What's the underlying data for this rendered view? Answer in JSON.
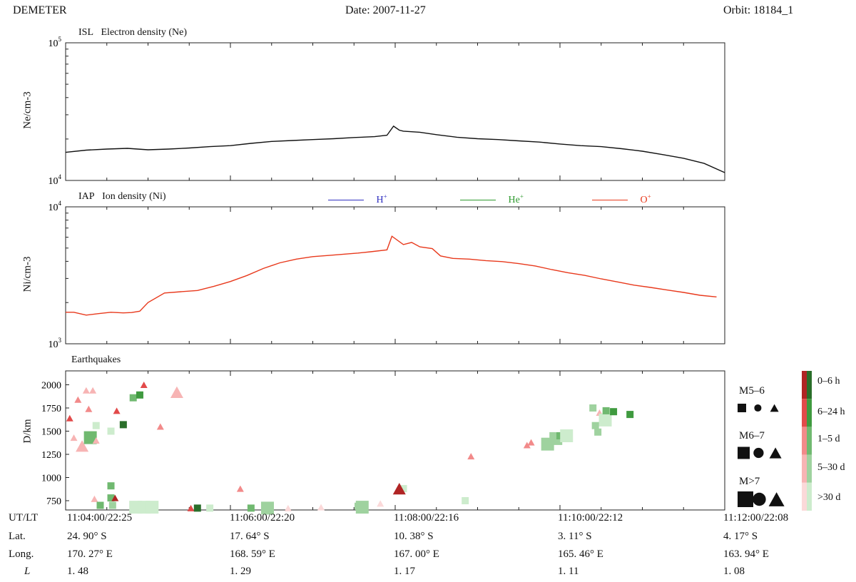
{
  "header": {
    "instrument": "DEMETER",
    "date_label": "Date:",
    "date": "2007-11-27",
    "orbit_label": "Orbit:",
    "orbit": "18184_1"
  },
  "colors": {
    "H": "#3030c0",
    "He": "#2e9a2e",
    "O": "#e8391c",
    "ne_line": "#111111"
  },
  "chart_data": [
    {
      "type": "line",
      "panel": "electron",
      "title_left": "ISL",
      "title": "Electron density (Ne)",
      "ylabel": "Ne/cm-3",
      "yscale": "log",
      "ylim": [
        10000,
        100000
      ],
      "yticks": [
        {
          "value": 10000,
          "label": "10",
          "exp": "4"
        },
        {
          "value": 100000,
          "label": "10",
          "exp": "5"
        }
      ],
      "xlim": [
        0,
        8
      ],
      "series": [
        {
          "x": [
            0,
            0.25,
            0.5,
            0.75,
            1,
            1.25,
            1.5,
            1.75,
            2,
            2.25,
            2.5,
            2.75,
            3,
            3.25,
            3.5,
            3.75,
            3.9,
            3.98,
            4.05,
            4.1,
            4.3,
            4.5,
            4.75,
            5,
            5.25,
            5.5,
            5.75,
            6,
            6.25,
            6.5,
            6.75,
            7,
            7.25,
            7.5,
            7.75,
            8
          ],
          "y": [
            16000,
            16600,
            16900,
            17100,
            16700,
            16900,
            17200,
            17600,
            17900,
            18600,
            19200,
            19500,
            19800,
            20100,
            20500,
            20800,
            21300,
            24800,
            23200,
            22800,
            22400,
            21500,
            20600,
            20100,
            19800,
            19400,
            19000,
            18400,
            17900,
            17600,
            17000,
            16300,
            15400,
            14500,
            13300,
            11400
          ]
        }
      ]
    },
    {
      "type": "line",
      "panel": "ion",
      "title_left": "IAP",
      "title": "Ion density (Ni)",
      "ylabel": "Ni/cm-3",
      "yscale": "log",
      "ylim": [
        1000,
        10000
      ],
      "yticks": [
        {
          "value": 1000,
          "label": "10",
          "exp": "3"
        },
        {
          "value": 10000,
          "label": "10",
          "exp": "4"
        }
      ],
      "xlim": [
        0,
        8
      ],
      "legend": [
        {
          "name": "H",
          "sup": "+",
          "color": "#3030c0"
        },
        {
          "name": "He",
          "sup": "+",
          "color": "#2e9a2e"
        },
        {
          "name": "O",
          "sup": "+",
          "color": "#e8391c"
        }
      ],
      "series": [
        {
          "name": "O+",
          "color": "#e8391c",
          "x": [
            0,
            0.1,
            0.25,
            0.4,
            0.55,
            0.7,
            0.8,
            0.9,
            1.0,
            1.2,
            1.4,
            1.6,
            1.8,
            2.0,
            2.2,
            2.4,
            2.6,
            2.8,
            3.0,
            3.2,
            3.4,
            3.55,
            3.7,
            3.9,
            3.96,
            4.1,
            4.2,
            4.3,
            4.45,
            4.55,
            4.7,
            4.9,
            5.1,
            5.3,
            5.5,
            5.7,
            5.9,
            6.1,
            6.3,
            6.5,
            6.7,
            6.9,
            7.1,
            7.3,
            7.5,
            7.7,
            7.9
          ],
          "y": [
            1700,
            1700,
            1620,
            1660,
            1700,
            1680,
            1690,
            1730,
            2000,
            2350,
            2400,
            2450,
            2630,
            2850,
            3150,
            3550,
            3900,
            4150,
            4330,
            4420,
            4520,
            4600,
            4700,
            4850,
            6100,
            5300,
            5500,
            5100,
            4950,
            4380,
            4200,
            4150,
            4050,
            3980,
            3850,
            3700,
            3480,
            3300,
            3160,
            2980,
            2830,
            2680,
            2580,
            2470,
            2370,
            2260,
            2200
          ]
        }
      ]
    },
    {
      "type": "scatter",
      "panel": "earthquakes",
      "title": "Earthquakes",
      "ylabel": "D/km",
      "ylim": [
        650,
        2150
      ],
      "yticks": [
        750,
        1000,
        1250,
        1500,
        1750,
        2000
      ],
      "xlim": [
        0,
        8
      ],
      "time_color_legend": [
        {
          "label": "0–6 h",
          "color": "#b02424"
        },
        {
          "label": "6–24 h",
          "color": "#e24a4a"
        },
        {
          "label": "1–5 d",
          "color": "#f28a8a"
        },
        {
          "label": "5–30 d",
          "color": "#f7b4b4"
        },
        {
          "label": ">30 d",
          "color": "#fbd9d9"
        }
      ],
      "time_color_legend_green": [
        "#2a6e2a",
        "#3f9a3f",
        "#70b970",
        "#9fd29f",
        "#cdeccd"
      ],
      "magnitude_legend": [
        {
          "label": "M5–6",
          "size": "small"
        },
        {
          "label": "M6–7",
          "size": "medium"
        },
        {
          "label": "M>7",
          "size": "large"
        }
      ],
      "points": [
        {
          "x": 0.05,
          "y": 1640,
          "shape": "tri",
          "size": "s",
          "c": "#e24a4a"
        },
        {
          "x": 0.1,
          "y": 1430,
          "shape": "tri",
          "size": "s",
          "c": "#f7b4b4"
        },
        {
          "x": 0.15,
          "y": 1840,
          "shape": "tri",
          "size": "s",
          "c": "#f28a8a"
        },
        {
          "x": 0.2,
          "y": 1340,
          "shape": "tri",
          "size": "m",
          "c": "#f7b4b4"
        },
        {
          "x": 0.25,
          "y": 1940,
          "shape": "tri",
          "size": "s",
          "c": "#f7b4b4"
        },
        {
          "x": 0.28,
          "y": 1740,
          "shape": "tri",
          "size": "s",
          "c": "#f28a8a"
        },
        {
          "x": 0.33,
          "y": 1940,
          "shape": "tri",
          "size": "s",
          "c": "#f7b4b4"
        },
        {
          "x": 0.3,
          "y": 1430,
          "shape": "sq",
          "size": "m",
          "c": "#70b970"
        },
        {
          "x": 0.37,
          "y": 1560,
          "shape": "sq",
          "size": "s",
          "c": "#cdeccd"
        },
        {
          "x": 0.37,
          "y": 1400,
          "shape": "tri",
          "size": "s",
          "c": "#f7b4b4"
        },
        {
          "x": 0.35,
          "y": 770,
          "shape": "tri",
          "size": "s",
          "c": "#f7b4b4"
        },
        {
          "x": 0.42,
          "y": 700,
          "shape": "sq",
          "size": "s",
          "c": "#70b970"
        },
        {
          "x": 0.55,
          "y": 1500,
          "shape": "sq",
          "size": "s",
          "c": "#cdeccd"
        },
        {
          "x": 0.55,
          "y": 910,
          "shape": "sq",
          "size": "s",
          "c": "#70b970"
        },
        {
          "x": 0.55,
          "y": 780,
          "shape": "sq",
          "size": "s",
          "c": "#70b970"
        },
        {
          "x": 0.57,
          "y": 700,
          "shape": "sq",
          "size": "s",
          "c": "#9fd29f"
        },
        {
          "x": 0.6,
          "y": 780,
          "shape": "tri",
          "size": "s",
          "c": "#b02424"
        },
        {
          "x": 0.62,
          "y": 1720,
          "shape": "tri",
          "size": "s",
          "c": "#e24a4a"
        },
        {
          "x": 0.7,
          "y": 1570,
          "shape": "sq",
          "size": "s",
          "c": "#2a6e2a"
        },
        {
          "x": 0.82,
          "y": 1860,
          "shape": "sq",
          "size": "s",
          "c": "#70b970"
        },
        {
          "x": 0.9,
          "y": 1890,
          "shape": "sq",
          "size": "s",
          "c": "#3f9a3f"
        },
        {
          "x": 0.95,
          "y": 2000,
          "shape": "tri",
          "size": "s",
          "c": "#e24a4a"
        },
        {
          "x": 0.85,
          "y": 680,
          "shape": "sq",
          "size": "m",
          "c": "#cdeccd"
        },
        {
          "x": 0.95,
          "y": 680,
          "shape": "sq",
          "size": "m",
          "c": "#cdeccd"
        },
        {
          "x": 1.05,
          "y": 680,
          "shape": "sq",
          "size": "m",
          "c": "#cdeccd"
        },
        {
          "x": 1.15,
          "y": 1550,
          "shape": "tri",
          "size": "s",
          "c": "#f28a8a"
        },
        {
          "x": 1.35,
          "y": 1920,
          "shape": "tri",
          "size": "m",
          "c": "#f7b4b4"
        },
        {
          "x": 1.52,
          "y": 670,
          "shape": "tri",
          "size": "s",
          "c": "#e24a4a"
        },
        {
          "x": 1.6,
          "y": 670,
          "shape": "sq",
          "size": "s",
          "c": "#2a6e2a"
        },
        {
          "x": 1.75,
          "y": 670,
          "shape": "sq",
          "size": "s",
          "c": "#cdeccd"
        },
        {
          "x": 2.12,
          "y": 880,
          "shape": "tri",
          "size": "s",
          "c": "#f28a8a"
        },
        {
          "x": 2.25,
          "y": 670,
          "shape": "sq",
          "size": "s",
          "c": "#70b970"
        },
        {
          "x": 2.45,
          "y": 670,
          "shape": "sq",
          "size": "m",
          "c": "#9fd29f"
        },
        {
          "x": 2.7,
          "y": 670,
          "shape": "tri",
          "size": "s",
          "c": "#fbd9d9"
        },
        {
          "x": 3.1,
          "y": 680,
          "shape": "tri",
          "size": "s",
          "c": "#fbd9d9"
        },
        {
          "x": 3.55,
          "y": 690,
          "shape": "sq",
          "size": "s",
          "c": "#9fd29f"
        },
        {
          "x": 3.6,
          "y": 680,
          "shape": "sq",
          "size": "m",
          "c": "#9fd29f"
        },
        {
          "x": 3.82,
          "y": 720,
          "shape": "tri",
          "size": "s",
          "c": "#fbd9d9"
        },
        {
          "x": 4.1,
          "y": 880,
          "shape": "sq",
          "size": "s",
          "c": "#cdeccd"
        },
        {
          "x": 4.05,
          "y": 880,
          "shape": "tri",
          "size": "m",
          "c": "#b02424"
        },
        {
          "x": 4.85,
          "y": 750,
          "shape": "sq",
          "size": "s",
          "c": "#cdeccd"
        },
        {
          "x": 4.92,
          "y": 1230,
          "shape": "tri",
          "size": "s",
          "c": "#f28a8a"
        },
        {
          "x": 5.6,
          "y": 1350,
          "shape": "tri",
          "size": "s",
          "c": "#f28a8a"
        },
        {
          "x": 5.65,
          "y": 1380,
          "shape": "tri",
          "size": "s",
          "c": "#f28a8a"
        },
        {
          "x": 5.85,
          "y": 1360,
          "shape": "sq",
          "size": "m",
          "c": "#9fd29f"
        },
        {
          "x": 5.95,
          "y": 1420,
          "shape": "sq",
          "size": "m",
          "c": "#9fd29f"
        },
        {
          "x": 6.0,
          "y": 1450,
          "shape": "sq",
          "size": "s",
          "c": "#70b970"
        },
        {
          "x": 6.08,
          "y": 1450,
          "shape": "sq",
          "size": "m",
          "c": "#cdeccd"
        },
        {
          "x": 6.4,
          "y": 1750,
          "shape": "sq",
          "size": "s",
          "c": "#9fd29f"
        },
        {
          "x": 6.48,
          "y": 1700,
          "shape": "tri",
          "size": "s",
          "c": "#f7b4b4"
        },
        {
          "x": 6.55,
          "y": 1620,
          "shape": "sq",
          "size": "m",
          "c": "#cdeccd"
        },
        {
          "x": 6.43,
          "y": 1560,
          "shape": "sq",
          "size": "s",
          "c": "#9fd29f"
        },
        {
          "x": 6.46,
          "y": 1490,
          "shape": "sq",
          "size": "s",
          "c": "#9fd29f"
        },
        {
          "x": 6.56,
          "y": 1720,
          "shape": "sq",
          "size": "s",
          "c": "#70b970"
        },
        {
          "x": 6.65,
          "y": 1710,
          "shape": "sq",
          "size": "s",
          "c": "#3f9a3f"
        },
        {
          "x": 6.85,
          "y": 1680,
          "shape": "sq",
          "size": "s",
          "c": "#3f9a3f"
        }
      ]
    }
  ],
  "footer": {
    "row_labels": [
      "UT/LT",
      "Lat.",
      "Long.",
      "L"
    ],
    "columns": [
      {
        "ut": "11:04:00/22:25",
        "lat": "24. 90° S",
        "long": "170. 27° E",
        "l": "1. 48"
      },
      {
        "ut": "11:06:00/22:20",
        "lat": "17. 64° S",
        "long": "168. 59° E",
        "l": "1. 29"
      },
      {
        "ut": "11:08:00/22:16",
        "lat": "10. 38° S",
        "long": "167. 00° E",
        "l": "1. 17"
      },
      {
        "ut": "11:10:00/22:12",
        "lat": "3. 11° S",
        "long": "165. 46° E",
        "l": "1. 11"
      },
      {
        "ut": "11:12:00/22:08",
        "lat": "4. 17° S",
        "long": "163. 94° E",
        "l": "1. 08"
      }
    ]
  }
}
